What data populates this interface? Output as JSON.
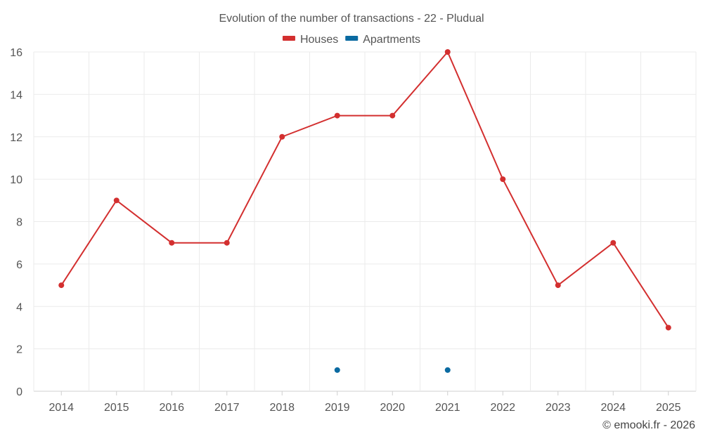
{
  "chart_data": {
    "type": "line",
    "title": "Evolution of the number of transactions - 22 - Pludual",
    "categories": [
      "2014",
      "2015",
      "2016",
      "2017",
      "2018",
      "2019",
      "2020",
      "2021",
      "2022",
      "2023",
      "2024",
      "2025"
    ],
    "series": [
      {
        "name": "Houses",
        "color": "#d32f2f",
        "values": [
          5,
          9,
          7,
          7,
          12,
          13,
          13,
          16,
          10,
          5,
          7,
          3
        ]
      },
      {
        "name": "Apartments",
        "color": "#0a6aa1",
        "values": [
          null,
          null,
          null,
          null,
          null,
          1,
          null,
          1,
          null,
          null,
          null,
          null
        ]
      }
    ],
    "ylim": [
      0,
      16
    ],
    "yticks": [
      0,
      2,
      4,
      6,
      8,
      10,
      12,
      14,
      16
    ],
    "xlabel": "",
    "ylabel": "",
    "grid": true,
    "legend": "top-center"
  },
  "credit": "© emooki.fr - 2026"
}
